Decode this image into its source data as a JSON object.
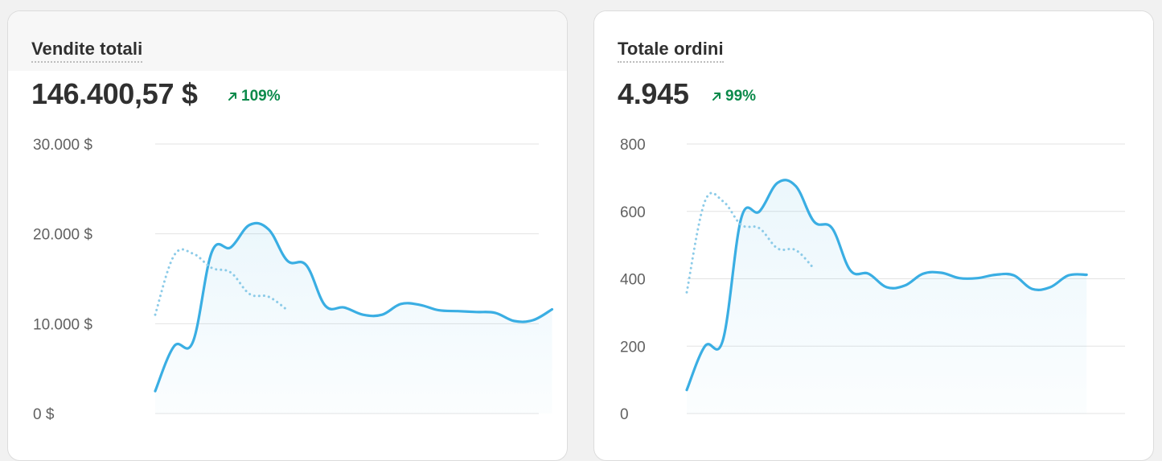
{
  "cards": [
    {
      "title": "Vendite totali",
      "value": "146.400,57 $",
      "delta": "109%",
      "delta_icon": "arrow-up-right-icon"
    },
    {
      "title": "Totale ordini",
      "value": "4.945",
      "delta": "99%",
      "delta_icon": "arrow-up-right-icon"
    }
  ],
  "colors": {
    "primary_line": "#3aaee3",
    "comparison_line": "#8ccbe8",
    "positive": "#0c8a4b",
    "gridline": "#e3e3e3"
  },
  "chart_data": [
    {
      "type": "line",
      "title": "Vendite totali",
      "ylim": [
        0,
        30000
      ],
      "yticks": [
        0,
        10000,
        20000,
        30000
      ],
      "ytick_labels": [
        "0 $",
        "10.000 $",
        "20.000 $",
        "30.000 $"
      ],
      "grid": true,
      "fill_primary": true,
      "x_count": 31,
      "series": [
        {
          "role": "primary",
          "style": "solid",
          "values": [
            2500,
            7500,
            8000,
            18000,
            18500,
            21000,
            20500,
            17000,
            16500,
            12000,
            11800,
            11000,
            11000,
            12200,
            12100,
            11500,
            11400,
            11300,
            11200,
            10300,
            10400,
            11600
          ]
        },
        {
          "role": "comparison",
          "style": "dotted",
          "values": [
            11000,
            17600,
            17800,
            16200,
            15700,
            13300,
            13000,
            11500
          ]
        }
      ]
    },
    {
      "type": "line",
      "title": "Totale ordini",
      "ylim": [
        0,
        800
      ],
      "yticks": [
        0,
        200,
        400,
        600,
        800
      ],
      "ytick_labels": [
        "0",
        "200",
        "400",
        "600",
        "800"
      ],
      "grid": true,
      "fill_primary": true,
      "x_count": 31,
      "series": [
        {
          "role": "primary",
          "style": "solid",
          "values": [
            70,
            200,
            220,
            580,
            600,
            685,
            675,
            570,
            550,
            425,
            415,
            375,
            380,
            415,
            418,
            402,
            402,
            412,
            410,
            370,
            375,
            410,
            412
          ]
        },
        {
          "role": "comparison",
          "style": "dotted",
          "values": [
            360,
            630,
            630,
            560,
            550,
            490,
            485,
            430
          ]
        }
      ]
    }
  ]
}
